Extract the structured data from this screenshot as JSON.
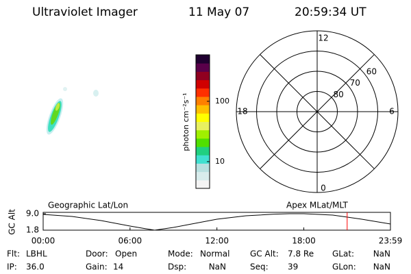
{
  "header": {
    "title": "Ultraviolet Imager",
    "date": "11 May 07",
    "time": "20:59:34 UT"
  },
  "colorbar": {
    "label": "photon cm⁻²s⁻¹",
    "lim": [
      3.6,
      590
    ],
    "log": true,
    "ticks": [
      10,
      100
    ],
    "colors": [
      "#f4f4f4",
      "#d8ecec",
      "#b8e0e0",
      "#40e0d0",
      "#20d080",
      "#50e000",
      "#a0f000",
      "#e8f060",
      "#ffff00",
      "#ffc000",
      "#ff8000",
      "#ff3000",
      "#d00000",
      "#900020",
      "#5a004a",
      "#200030"
    ]
  },
  "polar": {
    "lat_lim": [
      50,
      90
    ],
    "lat_rings": [
      60,
      70,
      80
    ],
    "mlt_ticks": [
      0,
      6,
      12,
      18
    ]
  },
  "chart_data": {
    "type": "line",
    "ylabel": "GC Alt",
    "title_left": "Geographic Lat/Lon",
    "title_right": "Apex MLat/MLT",
    "x": [
      0,
      2,
      4,
      6,
      7,
      7.7,
      9,
      10,
      12,
      14,
      16,
      17,
      18,
      20,
      22,
      23.983
    ],
    "series": [
      {
        "color": "#000000",
        "values": [
          8.7,
          7.8,
          6.0,
          3.6,
          2.5,
          1.8,
          3.0,
          4.2,
          6.6,
          8.1,
          8.8,
          9.0,
          9.0,
          8.4,
          6.6,
          4.5
        ]
      }
    ],
    "marker": {
      "x": 20.993,
      "color": "#ff0000"
    },
    "xlim": [
      0,
      23.983
    ],
    "ylim": [
      1.8,
      9.0
    ],
    "xticks": [
      {
        "value": 0,
        "label": "00:00"
      },
      {
        "value": 6,
        "label": "06:00"
      },
      {
        "value": 12,
        "label": "12:00"
      },
      {
        "value": 18,
        "label": "18:00"
      },
      {
        "value": 23.983,
        "label": "23:59"
      }
    ],
    "yticks": [
      {
        "value": 1.8,
        "label": "1.8"
      },
      {
        "value": 9.0,
        "label": "9.0"
      }
    ]
  },
  "info": {
    "rows": [
      [
        [
          "Flt:",
          "LBHL"
        ],
        [
          "Door:",
          "Open"
        ],
        [
          "Mode:",
          "Normal"
        ],
        [
          "GC Alt:",
          "7.8 Re"
        ],
        [
          "GLat:",
          "NaN"
        ]
      ],
      [
        [
          "IP:",
          "36.0"
        ],
        [
          "Gain:",
          "14"
        ],
        [
          "Dsp:",
          "NaN"
        ],
        [
          "Seq:",
          "39"
        ],
        [
          "GLon:",
          "NaN"
        ]
      ]
    ]
  }
}
